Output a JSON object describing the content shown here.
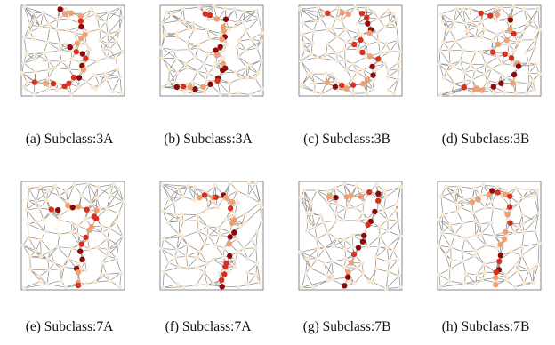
{
  "colors": {
    "edge": "#8a8a8a",
    "node_light": "#fbe8d2",
    "node_orange": "#f0a070",
    "node_red": "#d7301f",
    "node_dark": "#8b0a0a"
  },
  "panels": [
    {
      "caption": "(a) Subclass:3A",
      "pattern": "three-a"
    },
    {
      "caption": "(b) Subclass:3A",
      "pattern": "three-b"
    },
    {
      "caption": "(c) Subclass:3B",
      "pattern": "three-c"
    },
    {
      "caption": "(d) Subclass:3B",
      "pattern": "three-d"
    },
    {
      "caption": "(e) Subclass:7A",
      "pattern": "seven-a"
    },
    {
      "caption": "(f) Subclass:7A",
      "pattern": "seven-b"
    },
    {
      "caption": "(g) Subclass:7B",
      "pattern": "seven-c"
    },
    {
      "caption": "(h) Subclass:7B",
      "pattern": "seven-d"
    }
  ]
}
